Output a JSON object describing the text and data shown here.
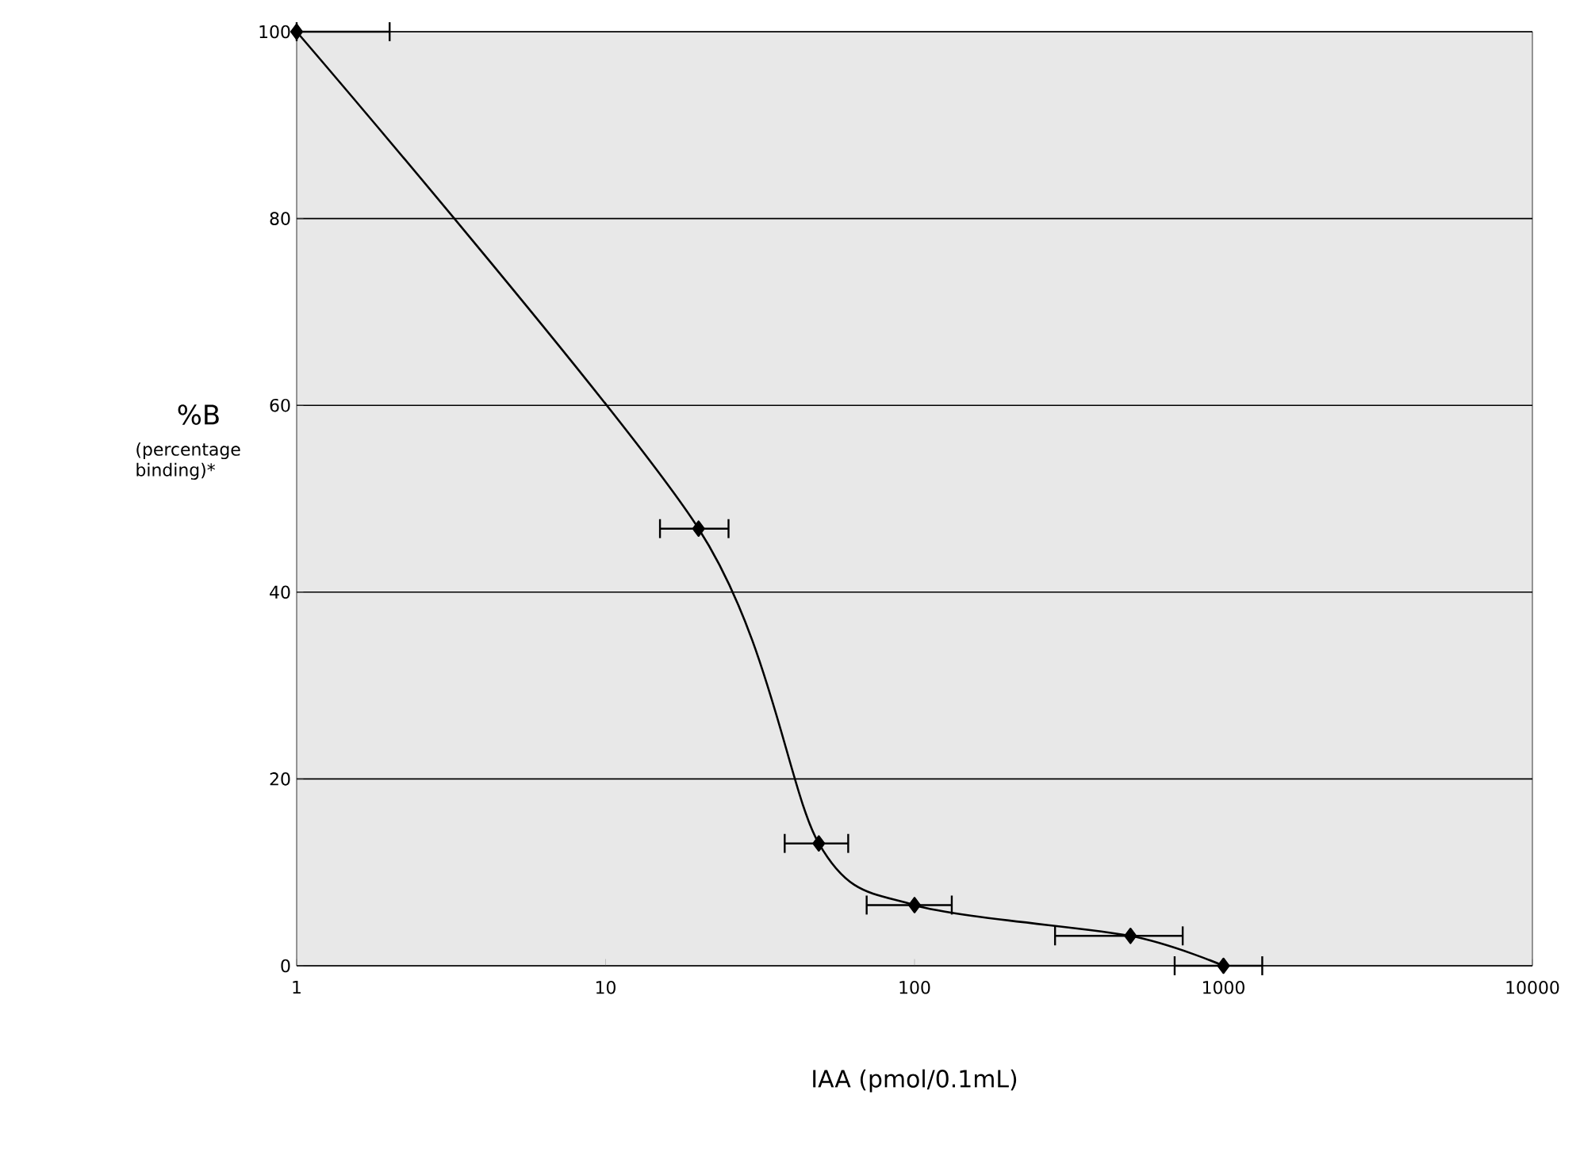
{
  "chart_data": {
    "type": "line",
    "xlabel": "IAA (pmol/0.1mL)",
    "ylabel": "%B",
    "annotations": [
      "(percentage binding)*"
    ],
    "x": [
      1,
      20,
      49,
      100,
      500,
      1000
    ],
    "values": [
      100,
      46.8,
      13.1,
      6.5,
      3.2,
      0
    ],
    "xerrors": [
      [
        1,
        2
      ],
      [
        15,
        25
      ],
      [
        38,
        61
      ],
      [
        70,
        132
      ],
      [
        285,
        738
      ],
      [
        695,
        1335
      ]
    ],
    "color": "#000000",
    "marker": "diamond",
    "line_style": "solid",
    "log": "x",
    "xlim": [
      1,
      10000
    ],
    "xticks": [
      1,
      10,
      100,
      1000,
      10000
    ],
    "ylim": [
      0,
      100
    ],
    "yticks": [
      0,
      20,
      40,
      60,
      80,
      100
    ],
    "grid": "y"
  }
}
